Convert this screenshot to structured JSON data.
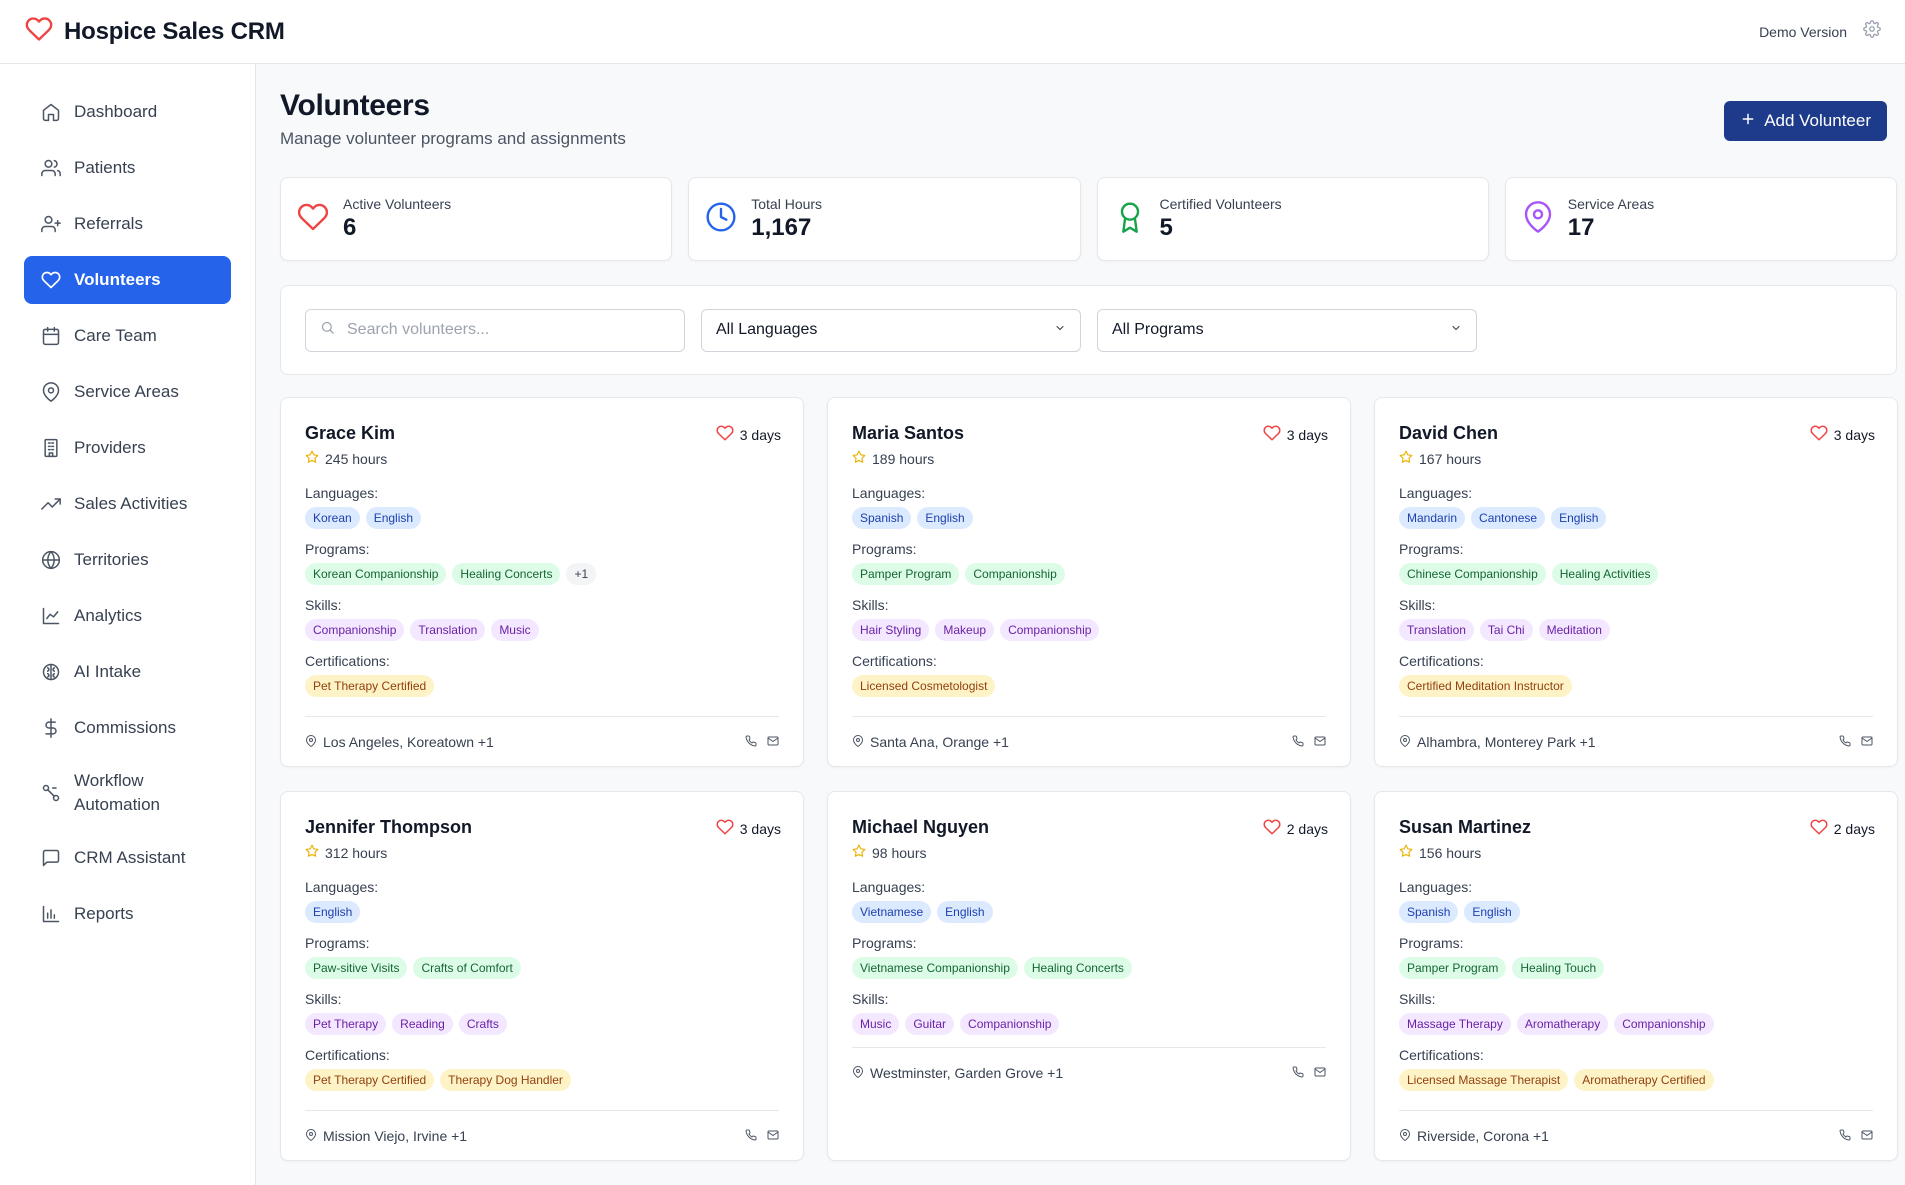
{
  "header": {
    "title": "Hospice Sales CRM",
    "demo_label": "Demo Version",
    "logo_icon": "heart-icon",
    "settings_icon": "gear-icon"
  },
  "sidebar": {
    "items": [
      {
        "label": "Dashboard",
        "icon": "home-icon"
      },
      {
        "label": "Patients",
        "icon": "users-icon"
      },
      {
        "label": "Referrals",
        "icon": "user-plus-icon"
      },
      {
        "label": "Volunteers",
        "icon": "heart-icon",
        "active": true
      },
      {
        "label": "Care Team",
        "icon": "calendar-icon"
      },
      {
        "label": "Service Areas",
        "icon": "map-pin-icon"
      },
      {
        "label": "Providers",
        "icon": "building-icon"
      },
      {
        "label": "Sales Activities",
        "icon": "trending-up-icon"
      },
      {
        "label": "Territories",
        "icon": "globe-icon"
      },
      {
        "label": "Analytics",
        "icon": "line-chart-icon"
      },
      {
        "label": "AI Intake",
        "icon": "brain-icon"
      },
      {
        "label": "Commissions",
        "icon": "dollar-icon"
      },
      {
        "label": "Workflow Automation",
        "icon": "workflow-icon"
      },
      {
        "label": "CRM Assistant",
        "icon": "message-icon"
      },
      {
        "label": "Reports",
        "icon": "bar-chart-icon"
      }
    ]
  },
  "page": {
    "title": "Volunteers",
    "subtitle": "Manage volunteer programs and assignments",
    "add_button": "Add Volunteer"
  },
  "stats": [
    {
      "label": "Active Volunteers",
      "value": "6",
      "icon": "heart-icon",
      "color": "#ef4444"
    },
    {
      "label": "Total Hours",
      "value": "1,167",
      "icon": "clock-icon",
      "color": "#2563eb"
    },
    {
      "label": "Certified Volunteers",
      "value": "5",
      "icon": "award-icon",
      "color": "#16a34a"
    },
    {
      "label": "Service Areas",
      "value": "17",
      "icon": "map-pin-icon",
      "color": "#a855f7"
    }
  ],
  "filters": {
    "search_placeholder": "Search volunteers...",
    "language_selected": "All Languages",
    "program_selected": "All Programs"
  },
  "labels": {
    "languages": "Languages:",
    "programs": "Programs:",
    "skills": "Skills:",
    "certifications": "Certifications:"
  },
  "volunteers": [
    {
      "name": "Grace Kim",
      "hours": "245 hours",
      "availability": "3 days",
      "languages": [
        "Korean",
        "English"
      ],
      "programs": [
        "Korean Companionship",
        "Healing Concerts"
      ],
      "programs_more": "+1",
      "skills": [
        "Companionship",
        "Translation",
        "Music"
      ],
      "certifications": [
        "Pet Therapy Certified"
      ],
      "location": "Los Angeles, Koreatown +1"
    },
    {
      "name": "Maria Santos",
      "hours": "189 hours",
      "availability": "3 days",
      "languages": [
        "Spanish",
        "English"
      ],
      "programs": [
        "Pamper Program",
        "Companionship"
      ],
      "skills": [
        "Hair Styling",
        "Makeup",
        "Companionship"
      ],
      "certifications": [
        "Licensed Cosmetologist"
      ],
      "location": "Santa Ana, Orange +1"
    },
    {
      "name": "David Chen",
      "hours": "167 hours",
      "availability": "3 days",
      "languages": [
        "Mandarin",
        "Cantonese",
        "English"
      ],
      "programs": [
        "Chinese Companionship",
        "Healing Activities"
      ],
      "skills": [
        "Translation",
        "Tai Chi",
        "Meditation"
      ],
      "certifications": [
        "Certified Meditation Instructor"
      ],
      "location": "Alhambra, Monterey Park +1"
    },
    {
      "name": "Jennifer Thompson",
      "hours": "312 hours",
      "availability": "3 days",
      "languages": [
        "English"
      ],
      "programs": [
        "Paw-sitive Visits",
        "Crafts of Comfort"
      ],
      "skills": [
        "Pet Therapy",
        "Reading",
        "Crafts"
      ],
      "certifications": [
        "Pet Therapy Certified",
        "Therapy Dog Handler"
      ],
      "location": "Mission Viejo, Irvine +1"
    },
    {
      "name": "Michael Nguyen",
      "hours": "98 hours",
      "availability": "2 days",
      "languages": [
        "Vietnamese",
        "English"
      ],
      "programs": [
        "Vietnamese Companionship",
        "Healing Concerts"
      ],
      "skills": [
        "Music",
        "Guitar",
        "Companionship"
      ],
      "certifications": [],
      "location": "Westminster, Garden Grove +1"
    },
    {
      "name": "Susan Martinez",
      "hours": "156 hours",
      "availability": "2 days",
      "languages": [
        "Spanish",
        "English"
      ],
      "programs": [
        "Pamper Program",
        "Healing Touch"
      ],
      "skills": [
        "Massage Therapy",
        "Aromatherapy",
        "Companionship"
      ],
      "certifications": [
        "Licensed Massage Therapist",
        "Aromatherapy Certified"
      ],
      "location": "Riverside, Corona +1"
    }
  ]
}
